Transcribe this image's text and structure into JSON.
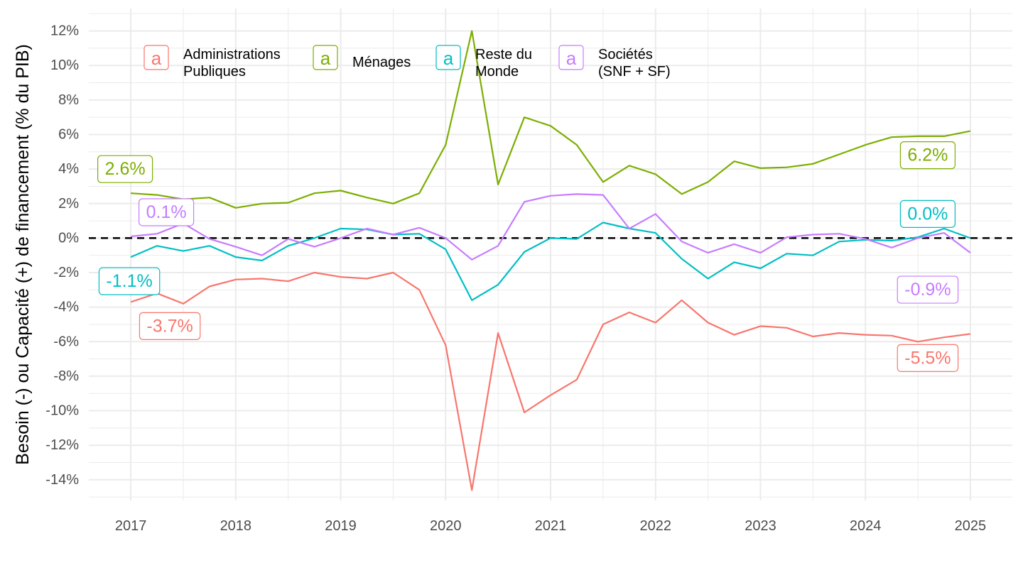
{
  "chart_data": {
    "type": "line",
    "title": "",
    "xlabel": "",
    "ylabel": "Besoin (-) ou Capacité (+) de financement (% du PIB)",
    "x_ticks": [
      "2017",
      "2018",
      "2019",
      "2020",
      "2021",
      "2022",
      "2023",
      "2024",
      "2025"
    ],
    "y_ticks": [
      "-14%",
      "-12%",
      "-10%",
      "-8%",
      "-6%",
      "-4%",
      "-2%",
      "0%",
      "2%",
      "4%",
      "6%",
      "8%",
      "10%",
      "12%"
    ],
    "xlim": [
      2016.6,
      2025.4
    ],
    "ylim": [
      -15.2,
      13.3
    ],
    "grid": true,
    "reference_line": {
      "y": 0,
      "style": "dashed",
      "color": "#000000"
    },
    "legend_position": "top-left",
    "legend_key_glyph": "a",
    "x": [
      2017,
      2017.25,
      2017.5,
      2017.75,
      2018,
      2018.25,
      2018.5,
      2018.75,
      2019,
      2019.25,
      2019.5,
      2019.75,
      2020,
      2020.25,
      2020.5,
      2020.75,
      2021,
      2021.25,
      2021.5,
      2021.75,
      2022,
      2022.25,
      2022.5,
      2022.75,
      2023,
      2023.25,
      2023.5,
      2023.75,
      2024,
      2024.25,
      2024.5,
      2024.75,
      2025
    ],
    "series": [
      {
        "name_lines": [
          "Administrations",
          "Publiques"
        ],
        "color": "#F8766D",
        "values": [
          -3.7,
          -3.2,
          -3.8,
          -2.8,
          -2.4,
          -2.35,
          -2.5,
          -2.0,
          -2.25,
          -2.35,
          -2.0,
          -3.0,
          -6.2,
          -14.6,
          -5.5,
          -10.1,
          -9.1,
          -8.2,
          -5.0,
          -4.3,
          -4.9,
          -3.6,
          -4.9,
          -5.6,
          -5.1,
          -5.2,
          -5.7,
          -5.5,
          -5.6,
          -5.65,
          -6.0,
          -5.75,
          -5.55
        ],
        "start_label": "-3.7%",
        "end_label": "-5.5%"
      },
      {
        "name_lines": [
          "Ménages"
        ],
        "color": "#7CAE00",
        "values": [
          2.6,
          2.5,
          2.25,
          2.35,
          1.75,
          2.0,
          2.05,
          2.6,
          2.75,
          2.35,
          2.0,
          2.6,
          5.4,
          12.0,
          3.1,
          7.0,
          6.5,
          5.4,
          3.25,
          4.2,
          3.7,
          2.55,
          3.25,
          4.45,
          4.05,
          4.1,
          4.3,
          4.85,
          5.4,
          5.85,
          5.9,
          5.9,
          6.2
        ],
        "start_label": "2.6%",
        "end_label": "6.2%"
      },
      {
        "name_lines": [
          "Reste du",
          "Monde"
        ],
        "color": "#00BFC4",
        "values": [
          -1.1,
          -0.45,
          -0.75,
          -0.45,
          -1.1,
          -1.3,
          -0.45,
          0.0,
          0.55,
          0.5,
          0.2,
          0.25,
          -0.65,
          -3.6,
          -2.7,
          -0.8,
          0.0,
          -0.05,
          0.9,
          0.55,
          0.3,
          -1.2,
          -2.35,
          -1.4,
          -1.75,
          -0.9,
          -1.0,
          -0.2,
          -0.1,
          -0.15,
          0.05,
          0.55,
          0.0
        ],
        "start_label": "-1.1%",
        "end_label": "0.0%"
      },
      {
        "name_lines": [
          "Sociétés",
          "(SNF + SF)"
        ],
        "color": "#C77CFF",
        "values": [
          0.1,
          0.25,
          0.85,
          -0.05,
          -0.5,
          -1.0,
          -0.05,
          -0.5,
          0.0,
          0.55,
          0.2,
          0.6,
          0.0,
          -1.25,
          -0.45,
          2.1,
          2.45,
          2.55,
          2.5,
          0.55,
          1.4,
          -0.2,
          -0.85,
          -0.35,
          -0.85,
          0.05,
          0.2,
          0.25,
          -0.05,
          -0.55,
          0.0,
          0.3,
          -0.85
        ],
        "start_label": "0.1%",
        "end_label": "-0.9%"
      }
    ]
  }
}
